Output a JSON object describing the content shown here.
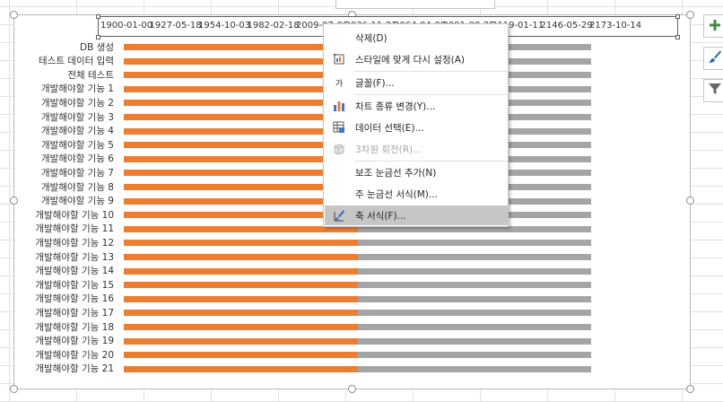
{
  "colors": {
    "series_done": "#ed7d31",
    "series_remaining": "#a5a5a5",
    "menu_highlight": "#c6c6c6",
    "side_plus": "#3c8f3c",
    "side_brush": "#2f6fb7",
    "side_filter": "#666666"
  },
  "chart_data": {
    "type": "bar",
    "orientation": "horizontal",
    "stacked": true,
    "x_tick_labels": [
      "1900-01-00",
      "1927-05-18",
      "1954-10-03",
      "1982-02-18",
      "2009-07-06",
      "2036-11-21",
      "2064-04-08",
      "2091-08-25",
      "2119-01-11",
      "2146-05-29",
      "2173-10-14"
    ],
    "categories": [
      "DB 생성",
      "테스트 데이터 입력",
      "전체 테스트",
      "개발해야할 기능 1",
      "개발해야할 기능 2",
      "개발해야할 기능 3",
      "개발해야할 기능 4",
      "개발해야할 기능 5",
      "개발해야할 기능 6",
      "개발해야할 기능 7",
      "개발해야할 기능 8",
      "개발해야할 기능 9",
      "개발해야할 기능 10",
      "개발해야할 기능 11",
      "개발해야할 기능 12",
      "개발해야할 기능 13",
      "개발해야할 기능 14",
      "개발해야할 기능 15",
      "개발해야할 기능 16",
      "개발해야할 기능 17",
      "개발해야할 기능 18",
      "개발해야할 기능 19",
      "개발해야할 기능 20",
      "개발해야할 기능 21"
    ],
    "series": [
      {
        "color": "#ed7d31",
        "values": [
          0.5,
          0.5,
          0.5,
          0.5,
          0.5,
          0.5,
          0.5,
          0.5,
          0.5,
          0.5,
          0.5,
          0.5,
          0.5,
          0.5,
          0.5,
          0.5,
          0.5,
          0.5,
          0.5,
          0.5,
          0.5,
          0.5,
          0.5,
          0.5
        ]
      },
      {
        "color": "#a5a5a5",
        "values": [
          0.5,
          0.5,
          0.5,
          0.5,
          0.5,
          0.5,
          0.5,
          0.5,
          0.5,
          0.5,
          0.5,
          0.5,
          0.5,
          0.5,
          0.5,
          0.5,
          0.5,
          0.5,
          0.5,
          0.5,
          0.5,
          0.5,
          0.5,
          0.5
        ]
      }
    ],
    "axis_position": "top",
    "grid": false,
    "legend": "none"
  },
  "context_menu": {
    "items": [
      {
        "id": "delete",
        "label": "삭제(D)",
        "icon": "none",
        "disabled": false
      },
      {
        "id": "reset-style",
        "label": "스타일에 맞게 다시 설정(A)",
        "icon": "reset-style-icon",
        "disabled": false
      },
      {
        "id": "font",
        "label": "글꼴(F)...",
        "icon": "font-icon",
        "disabled": false
      },
      {
        "id": "change-chart-type",
        "label": "차트 종류 변경(Y)...",
        "icon": "chart-type-icon",
        "disabled": false
      },
      {
        "id": "select-data",
        "label": "데이터 선택(E)...",
        "icon": "select-data-icon",
        "disabled": false
      },
      {
        "id": "3d-rotation",
        "label": "3차원 회전(R)...",
        "icon": "3d-rotation-icon",
        "disabled": true
      },
      {
        "id": "add-minor-gridlines",
        "label": "보조 눈금선 추가(N)",
        "icon": "none",
        "disabled": false
      },
      {
        "id": "format-major-gridlines",
        "label": "주 눈금선 서식(M)...",
        "icon": "none",
        "disabled": false
      },
      {
        "id": "format-axis",
        "label": "축 서식(F)...",
        "icon": "format-axis-icon",
        "disabled": false,
        "highlighted": true
      }
    ],
    "font_icon_glyph": "가"
  },
  "side_buttons": [
    {
      "id": "chart-elements",
      "icon": "plus-icon"
    },
    {
      "id": "chart-styles",
      "icon": "brush-icon"
    },
    {
      "id": "chart-filters",
      "icon": "filter-icon"
    }
  ]
}
